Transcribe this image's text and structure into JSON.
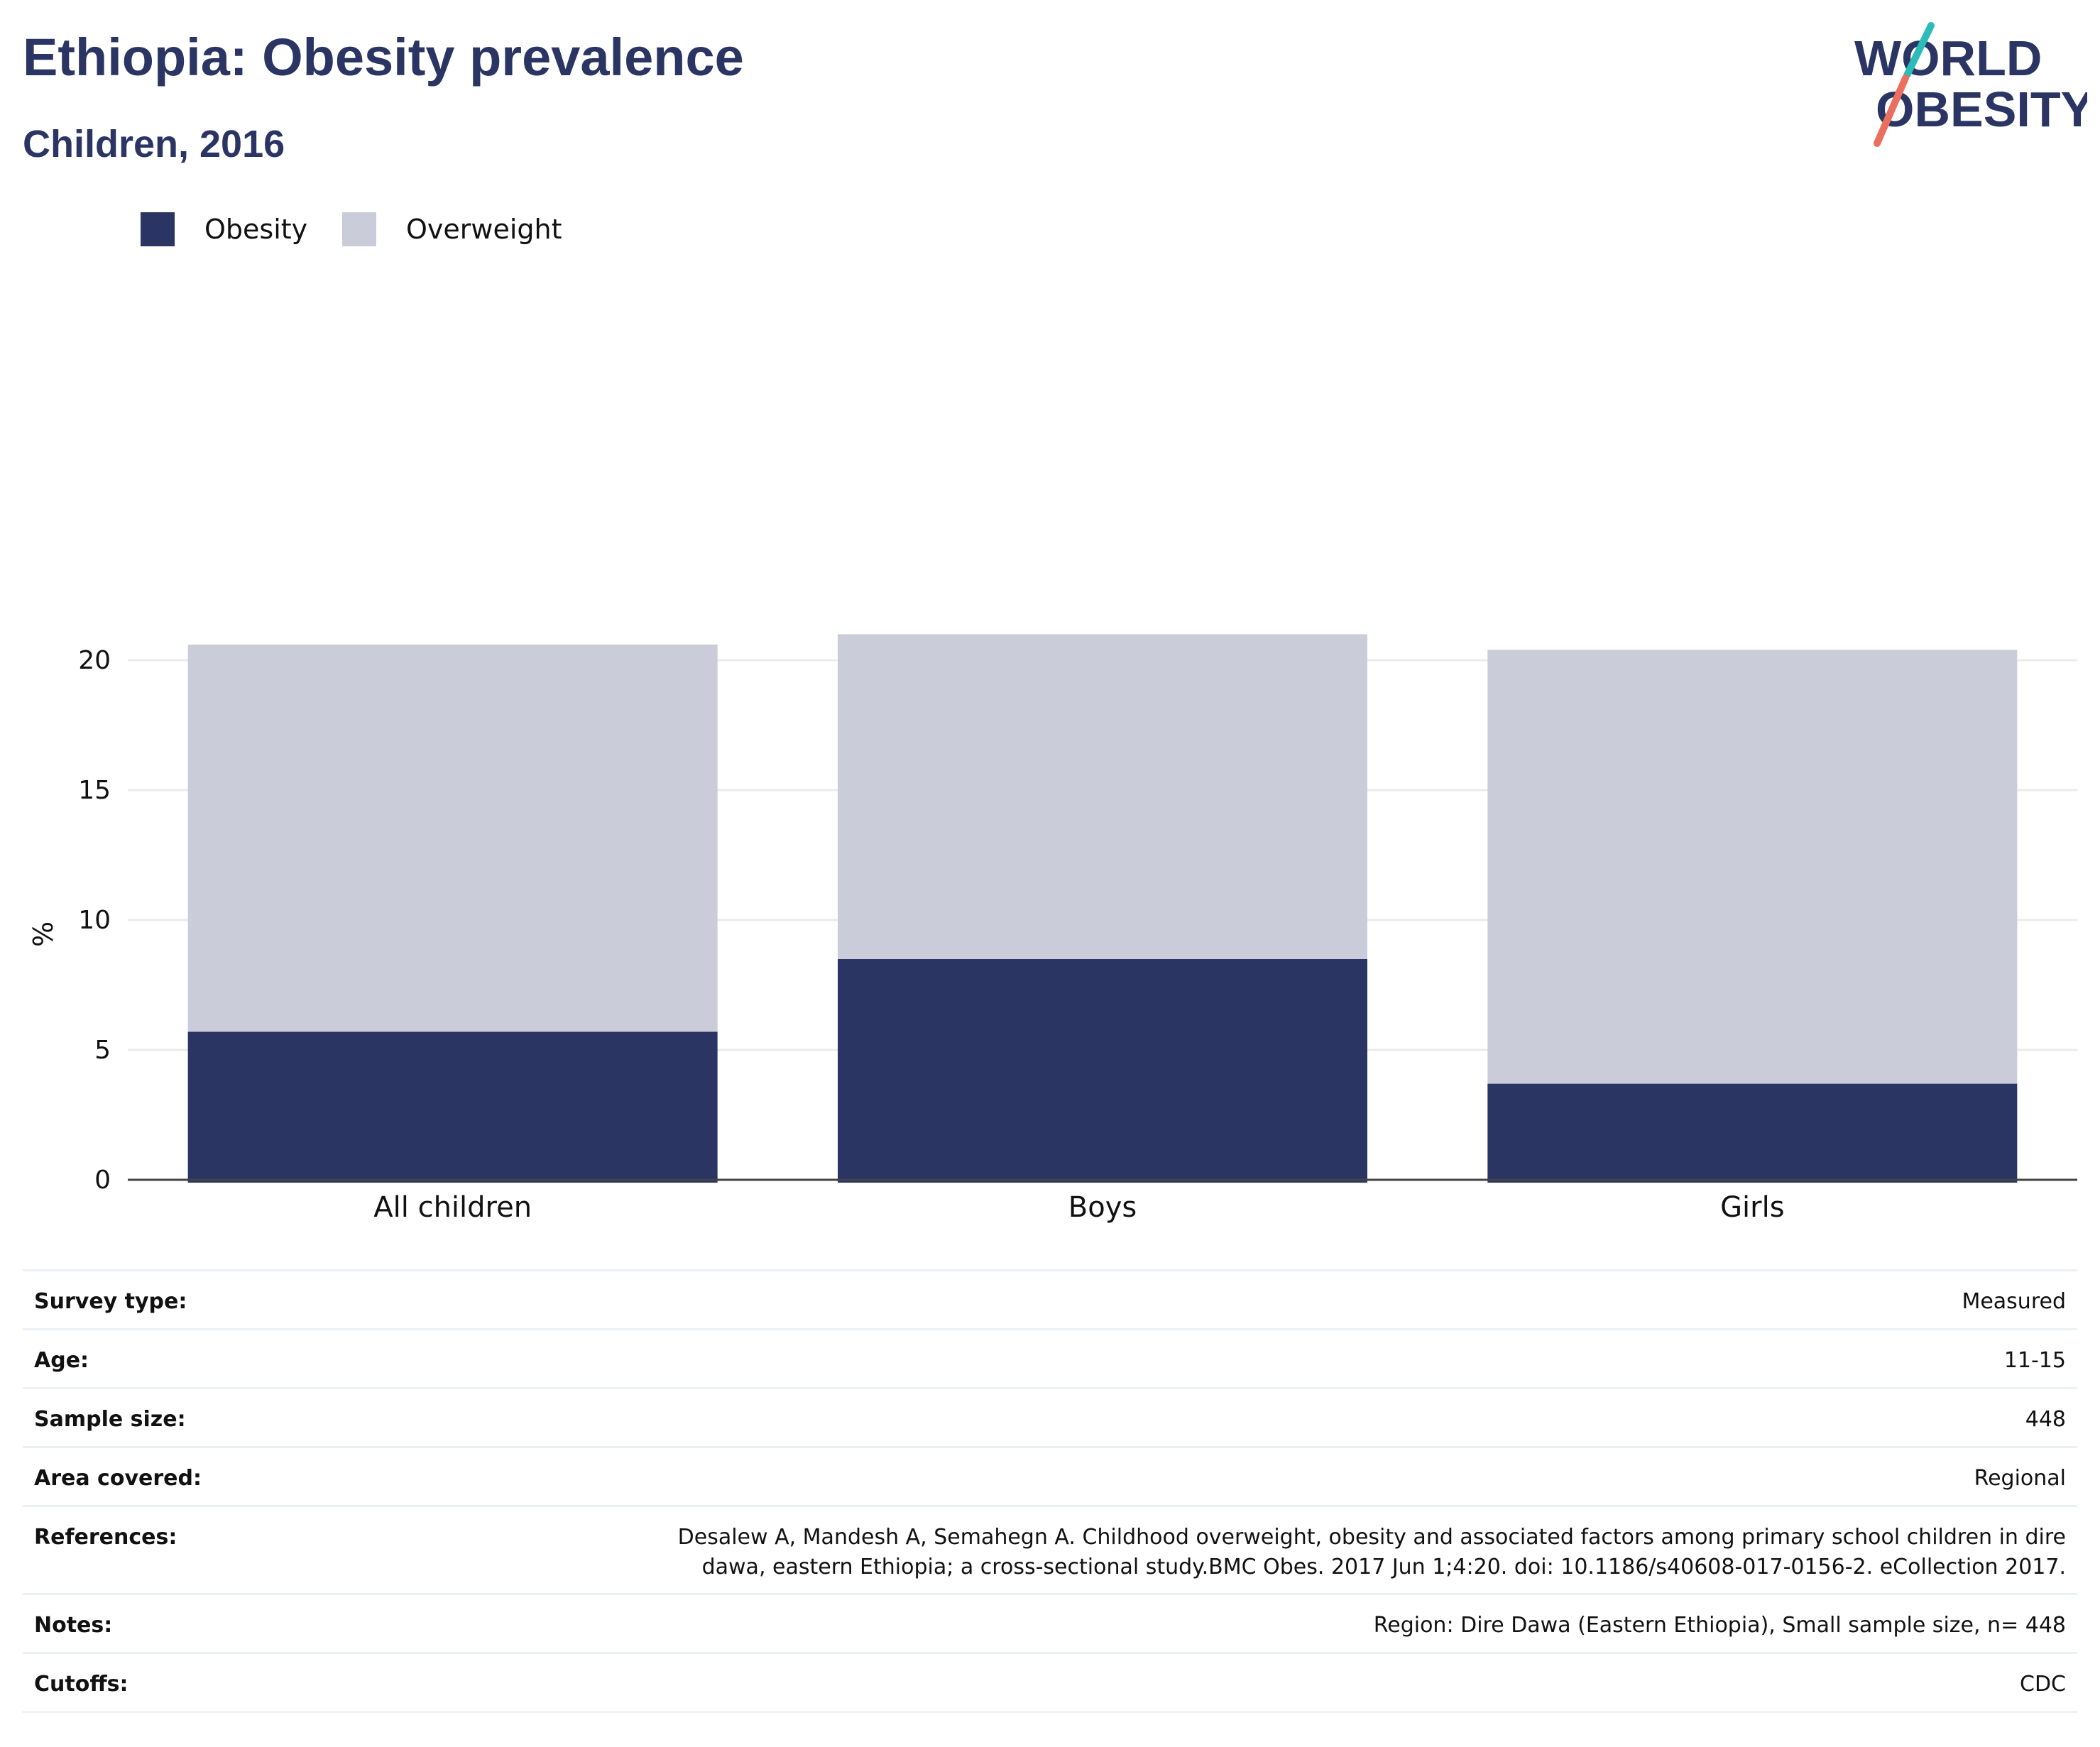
{
  "header": {
    "title": "Ethiopia: Obesity prevalence",
    "subtitle": "Children, 2016"
  },
  "logo": {
    "line1": "WORLD",
    "line2": "OBESITY",
    "colors": {
      "text": "#2a3563",
      "slash_top": "#2bbbb9",
      "slash_bottom": "#ea6f5e"
    }
  },
  "colors": {
    "obesity": "#2a3563",
    "overweight": "#cacdd9"
  },
  "chart_data": {
    "type": "bar",
    "stacked": true,
    "categories": [
      "All children",
      "Boys",
      "Girls"
    ],
    "series": [
      {
        "name": "Obesity",
        "values": [
          5.7,
          8.5,
          3.7
        ]
      },
      {
        "name": "Overweight",
        "values": [
          14.9,
          12.5,
          16.7
        ]
      }
    ],
    "ylabel": "%",
    "ylim": [
      0,
      21
    ],
    "yticks": [
      0,
      5,
      10,
      15,
      20
    ],
    "grid": true,
    "legend_position": "top-left"
  },
  "info": {
    "rows": [
      {
        "label": "Survey type:",
        "value": "Measured"
      },
      {
        "label": "Age:",
        "value": "11-15"
      },
      {
        "label": "Sample size:",
        "value": "448"
      },
      {
        "label": "Area covered:",
        "value": "Regional"
      },
      {
        "label": "References:",
        "value_lines": [
          "Desalew A, Mandesh A, Semahegn A. Childhood overweight, obesity and associated factors among primary school children in dire",
          "dawa, eastern Ethiopia; a cross-sectional study.BMC Obes. 2017 Jun 1;4:20. doi: 10.1186/s40608-017-0156-2. eCollection 2017."
        ]
      },
      {
        "label": "Notes:",
        "value": "Region: Dire Dawa (Eastern Ethiopia), Small sample size, n= 448"
      },
      {
        "label": "Cutoffs:",
        "value": "CDC"
      }
    ]
  }
}
